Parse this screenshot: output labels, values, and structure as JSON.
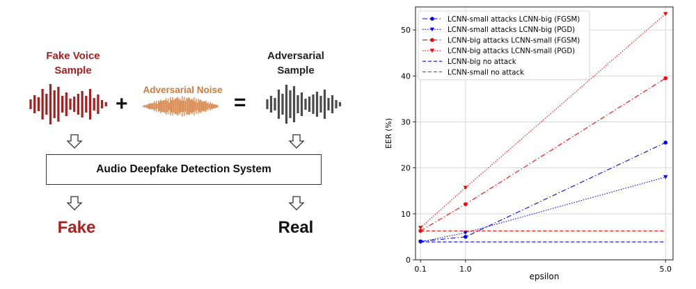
{
  "diagram": {
    "fake_label": [
      "Fake Voice",
      "Sample"
    ],
    "noise_label": "Adversarial Noise",
    "adversarial_label": [
      "Adversarial",
      "Sample"
    ],
    "plus": "+",
    "equals": "=",
    "detector": "Audio Deepfake Detection System",
    "result_fake": "Fake",
    "result_real": "Real",
    "colors": {
      "fake": "#a81e1e",
      "noise": "#d9894e",
      "adversarial": "#4a4a4a"
    }
  },
  "chart_data": {
    "type": "line",
    "title": "",
    "xlabel": "epsilon",
    "ylabel": "EER (%)",
    "x": [
      0.1,
      1.0,
      5.0
    ],
    "xticks": [
      "0.1",
      "1.0",
      "5.0"
    ],
    "ylim": [
      0,
      55
    ],
    "yticks": [
      "0",
      "10",
      "20",
      "30",
      "40",
      "50"
    ],
    "grid": true,
    "legend_position": "top-left",
    "series": [
      {
        "name": "LCNN-small attacks LCNN-big (FGSM)",
        "values": [
          4.0,
          5.0,
          25.5
        ],
        "color": "#0000ff",
        "dash": "dashdot",
        "marker": "circle"
      },
      {
        "name": "LCNN-small attacks LCNN-big (PGD)",
        "values": [
          3.9,
          5.9,
          18.0
        ],
        "color": "#0000ff",
        "dash": "dotted",
        "marker": "triangle"
      },
      {
        "name": "LCNN-big attacks LCNN-small (FGSM)",
        "values": [
          6.3,
          12.1,
          39.5
        ],
        "color": "#ff0000",
        "dash": "dashdot",
        "marker": "circle"
      },
      {
        "name": "LCNN-big attacks LCNN-small (PGD)",
        "values": [
          7.0,
          15.7,
          53.5
        ],
        "color": "#ff0000",
        "dash": "dotted",
        "marker": "triangle"
      },
      {
        "name": "LCNN-big no attack",
        "values": [
          3.9,
          3.9,
          3.9
        ],
        "color": "#0000ff",
        "dash": "dashed",
        "marker": "none"
      },
      {
        "name": "LCNN-small no attack",
        "values": [
          6.3,
          6.3,
          6.3
        ],
        "color": "#ff0000",
        "dash": "dashed",
        "marker": "none"
      }
    ]
  }
}
